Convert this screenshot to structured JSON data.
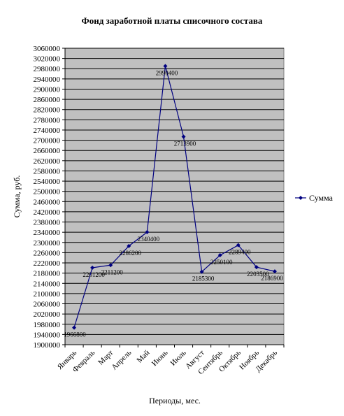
{
  "chart_data": {
    "type": "line",
    "title": "Фонд заработной платы списочного состава",
    "xlabel": "Периоды, мес.",
    "ylabel": "Сумма, руб.",
    "ylim": [
      1900000,
      3060000
    ],
    "ystep": 40000,
    "grid": true,
    "legend_position": "right",
    "categories": [
      "Январь",
      "Февраль",
      "Март",
      "Апрель",
      "Май",
      "Июнь",
      "Июль",
      "Август",
      "Сентябрь",
      "Октябрь",
      "Ноябрь",
      "Декабрь"
    ],
    "series": [
      {
        "name": "Сумма",
        "values": [
          1966800,
          2201200,
          2211200,
          2286200,
          2340400,
          2990400,
          2713900,
          2185300,
          2250100,
          2289400,
          2203500,
          2186900
        ],
        "labels": [
          "1966800",
          "2201200",
          "2211200",
          "2286200",
          "2340400",
          "2990400",
          "2713900",
          "2185300",
          "2250100",
          "2289400",
          "2203500",
          "2186900"
        ]
      }
    ],
    "colors": {
      "plot_background": "#c0c0c0",
      "series_line": "#000080",
      "grid": "#000000"
    }
  }
}
